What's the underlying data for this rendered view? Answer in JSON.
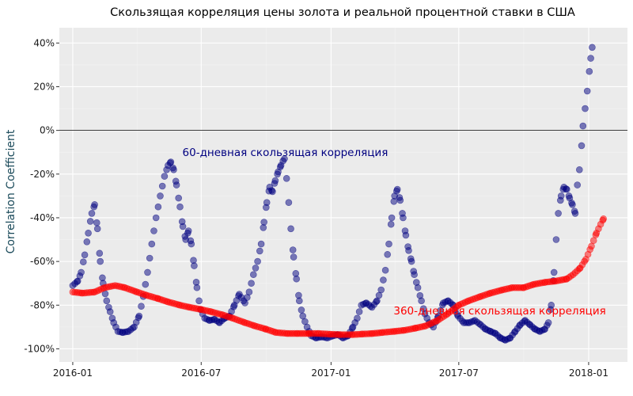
{
  "colors": {
    "panel": "#ebebeb",
    "grid_major": "#ffffff",
    "grid_minor": "#f4f4f4",
    "series_60": "#000080",
    "series_360": "#ff0000",
    "zero_line": "#000000",
    "ylabel": "#1a4a5a"
  },
  "chart_data": {
    "type": "scatter",
    "title": "Скользящая корреляция цены золота и реальной процентной ставки в США",
    "xlabel": "",
    "ylabel": "Correlation Coefficient",
    "xlim": [
      "2015-12-13",
      "2018-02-25"
    ],
    "ylim": [
      -106,
      47
    ],
    "x_ticks": [
      {
        "date": "2016-01-01",
        "label": "2016-01"
      },
      {
        "date": "2016-07-01",
        "label": "2016-07"
      },
      {
        "date": "2017-01-01",
        "label": "2017-01"
      },
      {
        "date": "2017-07-01",
        "label": "2017-07"
      },
      {
        "date": "2018-01-01",
        "label": "2018-01"
      }
    ],
    "y_ticks": [
      {
        "value": 40,
        "label": "40%"
      },
      {
        "value": 20,
        "label": "20%"
      },
      {
        "value": 0,
        "label": "0%"
      },
      {
        "value": -20,
        "label": "-20%"
      },
      {
        "value": -40,
        "label": "-40%"
      },
      {
        "value": -60,
        "label": "-60%"
      },
      {
        "value": -80,
        "label": "-80%"
      },
      {
        "value": -100,
        "label": "-100%"
      }
    ],
    "hline": 0,
    "grid": true,
    "legend": "none",
    "series": [
      {
        "name": "60-дневная скользящая корреляция",
        "color": "#000080",
        "points": [
          [
            "2016-01-01",
            -71
          ],
          [
            "2016-01-08",
            -69
          ],
          [
            "2016-01-13",
            -65
          ],
          [
            "2016-01-18",
            -57
          ],
          [
            "2016-01-23",
            -47
          ],
          [
            "2016-01-28",
            -38
          ],
          [
            "2016-02-01",
            -34
          ],
          [
            "2016-02-05",
            -45
          ],
          [
            "2016-02-09",
            -60
          ],
          [
            "2016-02-13",
            -70
          ],
          [
            "2016-02-18",
            -78
          ],
          [
            "2016-02-23",
            -83
          ],
          [
            "2016-02-28",
            -88
          ],
          [
            "2016-03-05",
            -92
          ],
          [
            "2016-03-12",
            -92.5
          ],
          [
            "2016-03-20",
            -92
          ],
          [
            "2016-03-28",
            -90
          ],
          [
            "2016-04-04",
            -85
          ],
          [
            "2016-04-10",
            -76
          ],
          [
            "2016-04-16",
            -65
          ],
          [
            "2016-04-22",
            -52
          ],
          [
            "2016-04-28",
            -40
          ],
          [
            "2016-05-04",
            -30
          ],
          [
            "2016-05-10",
            -21
          ],
          [
            "2016-05-15",
            -16
          ],
          [
            "2016-05-19",
            -14.5
          ],
          [
            "2016-05-23",
            -18
          ],
          [
            "2016-05-27",
            -25
          ],
          [
            "2016-06-01",
            -35
          ],
          [
            "2016-06-05",
            -44
          ],
          [
            "2016-06-09",
            -50
          ],
          [
            "2016-06-13",
            -46
          ],
          [
            "2016-06-17",
            -52
          ],
          [
            "2016-06-21",
            -62
          ],
          [
            "2016-06-25",
            -72
          ],
          [
            "2016-06-30",
            -82
          ],
          [
            "2016-07-06",
            -86
          ],
          [
            "2016-07-13",
            -87
          ],
          [
            "2016-07-20",
            -86.5
          ],
          [
            "2016-07-27",
            -88
          ],
          [
            "2016-08-03",
            -86
          ],
          [
            "2016-08-10",
            -85
          ],
          [
            "2016-08-17",
            -80
          ],
          [
            "2016-08-24",
            -75
          ],
          [
            "2016-09-01",
            -79
          ],
          [
            "2016-09-07",
            -74
          ],
          [
            "2016-09-13",
            -66
          ],
          [
            "2016-09-19",
            -60
          ],
          [
            "2016-09-24",
            -52
          ],
          [
            "2016-09-28",
            -42
          ],
          [
            "2016-10-02",
            -33
          ],
          [
            "2016-10-06",
            -26
          ],
          [
            "2016-10-10",
            -28
          ],
          [
            "2016-10-14",
            -23
          ],
          [
            "2016-10-18",
            -19
          ],
          [
            "2016-10-22",
            -16
          ],
          [
            "2016-10-25",
            -14
          ],
          [
            "2016-10-27",
            -13
          ],
          [
            "2016-10-30",
            -22
          ],
          [
            "2016-11-02",
            -33
          ],
          [
            "2016-11-05",
            -45
          ],
          [
            "2016-11-09",
            -58
          ],
          [
            "2016-11-13",
            -68
          ],
          [
            "2016-11-17",
            -78
          ],
          [
            "2016-11-22",
            -85
          ],
          [
            "2016-11-28",
            -90
          ],
          [
            "2016-12-04",
            -94
          ],
          [
            "2016-12-11",
            -95
          ],
          [
            "2016-12-19",
            -94.5
          ],
          [
            "2016-12-27",
            -95
          ],
          [
            "2017-01-04",
            -94
          ],
          [
            "2017-01-11",
            -93.5
          ],
          [
            "2017-01-18",
            -95
          ],
          [
            "2017-01-25",
            -94
          ],
          [
            "2017-02-01",
            -90
          ],
          [
            "2017-02-07",
            -86
          ],
          [
            "2017-02-13",
            -80
          ],
          [
            "2017-02-20",
            -79
          ],
          [
            "2017-02-28",
            -81
          ],
          [
            "2017-03-07",
            -78
          ],
          [
            "2017-03-13",
            -73
          ],
          [
            "2017-03-19",
            -64
          ],
          [
            "2017-03-24",
            -52
          ],
          [
            "2017-03-28",
            -40
          ],
          [
            "2017-04-01",
            -30
          ],
          [
            "2017-04-05",
            -27
          ],
          [
            "2017-04-09",
            -32
          ],
          [
            "2017-04-13",
            -40
          ],
          [
            "2017-04-17",
            -48
          ],
          [
            "2017-04-21",
            -55
          ],
          [
            "2017-04-25",
            -60
          ],
          [
            "2017-04-29",
            -66
          ],
          [
            "2017-05-04",
            -72
          ],
          [
            "2017-05-09",
            -78
          ],
          [
            "2017-05-14",
            -84
          ],
          [
            "2017-05-20",
            -88
          ],
          [
            "2017-05-26",
            -90
          ],
          [
            "2017-06-02",
            -85
          ],
          [
            "2017-06-09",
            -79
          ],
          [
            "2017-06-16",
            -78
          ],
          [
            "2017-06-23",
            -80
          ],
          [
            "2017-06-30",
            -85
          ],
          [
            "2017-07-08",
            -88
          ],
          [
            "2017-07-16",
            -88
          ],
          [
            "2017-07-24",
            -87
          ],
          [
            "2017-08-01",
            -89
          ],
          [
            "2017-08-08",
            -91
          ],
          [
            "2017-08-15",
            -92
          ],
          [
            "2017-08-22",
            -93
          ],
          [
            "2017-08-29",
            -95
          ],
          [
            "2017-09-05",
            -96
          ],
          [
            "2017-09-12",
            -95
          ],
          [
            "2017-09-19",
            -92
          ],
          [
            "2017-09-26",
            -89
          ],
          [
            "2017-10-03",
            -87
          ],
          [
            "2017-10-10",
            -89
          ],
          [
            "2017-10-17",
            -91
          ],
          [
            "2017-10-24",
            -92
          ],
          [
            "2017-10-31",
            -91
          ],
          [
            "2017-11-05",
            -88
          ],
          [
            "2017-11-09",
            -80
          ],
          [
            "2017-11-13",
            -65
          ],
          [
            "2017-11-16",
            -50
          ],
          [
            "2017-11-19",
            -38
          ],
          [
            "2017-11-23",
            -30
          ],
          [
            "2017-11-27",
            -26
          ],
          [
            "2017-12-01",
            -27
          ],
          [
            "2017-12-05",
            -31
          ],
          [
            "2017-12-09",
            -34
          ],
          [
            "2017-12-13",
            -38
          ],
          [
            "2017-12-16",
            -25
          ],
          [
            "2017-12-19",
            -18
          ],
          [
            "2017-12-22",
            -7
          ],
          [
            "2017-12-24",
            2
          ],
          [
            "2017-12-27",
            10
          ],
          [
            "2017-12-30",
            18
          ],
          [
            "2018-01-02",
            27
          ],
          [
            "2018-01-04",
            33
          ],
          [
            "2018-01-06",
            38
          ]
        ]
      },
      {
        "name": "360-дневная скользящая корреляция",
        "color": "#ff0000",
        "points": [
          [
            "2016-01-01",
            -74
          ],
          [
            "2016-01-15",
            -74.5
          ],
          [
            "2016-02-01",
            -74
          ],
          [
            "2016-02-15",
            -72
          ],
          [
            "2016-03-01",
            -71
          ],
          [
            "2016-03-15",
            -72
          ],
          [
            "2016-04-01",
            -74
          ],
          [
            "2016-04-15",
            -75.5
          ],
          [
            "2016-05-01",
            -77
          ],
          [
            "2016-05-15",
            -78.5
          ],
          [
            "2016-06-01",
            -80
          ],
          [
            "2016-06-15",
            -81
          ],
          [
            "2016-07-01",
            -82
          ],
          [
            "2016-07-15",
            -83
          ],
          [
            "2016-08-01",
            -84.5
          ],
          [
            "2016-08-15",
            -86
          ],
          [
            "2016-09-01",
            -88
          ],
          [
            "2016-09-15",
            -89.5
          ],
          [
            "2016-10-01",
            -91
          ],
          [
            "2016-10-15",
            -92.5
          ],
          [
            "2016-11-01",
            -93
          ],
          [
            "2016-11-15",
            -93
          ],
          [
            "2016-12-01",
            -93
          ],
          [
            "2016-12-15",
            -93
          ],
          [
            "2017-01-01",
            -93.3
          ],
          [
            "2017-01-15",
            -93.5
          ],
          [
            "2017-02-01",
            -93.5
          ],
          [
            "2017-02-15",
            -93.2
          ],
          [
            "2017-03-01",
            -93
          ],
          [
            "2017-03-15",
            -92.5
          ],
          [
            "2017-04-01",
            -92
          ],
          [
            "2017-04-15",
            -91.5
          ],
          [
            "2017-05-01",
            -90.5
          ],
          [
            "2017-05-15",
            -89.5
          ],
          [
            "2017-06-01",
            -87
          ],
          [
            "2017-06-15",
            -84
          ],
          [
            "2017-07-01",
            -80
          ],
          [
            "2017-07-15",
            -78
          ],
          [
            "2017-08-01",
            -76
          ],
          [
            "2017-08-15",
            -74.5
          ],
          [
            "2017-09-01",
            -73
          ],
          [
            "2017-09-15",
            -72
          ],
          [
            "2017-10-01",
            -72
          ],
          [
            "2017-10-15",
            -70.5
          ],
          [
            "2017-11-01",
            -69.5
          ],
          [
            "2017-11-15",
            -69
          ],
          [
            "2017-12-01",
            -68
          ],
          [
            "2017-12-10",
            -66
          ],
          [
            "2017-12-20",
            -63
          ],
          [
            "2017-12-28",
            -59
          ],
          [
            "2018-01-05",
            -53
          ],
          [
            "2018-01-12",
            -47
          ],
          [
            "2018-01-18",
            -43
          ],
          [
            "2018-01-22",
            -40.5
          ]
        ]
      }
    ],
    "annotations": [
      {
        "text": "60-дневная скользящая корреляция",
        "date": "2016-10-28",
        "value": -10,
        "color": "#000080"
      },
      {
        "text": "360-дневная скользящая корреляция",
        "date": "2017-08-28",
        "value": -82.5,
        "color": "#ff0000"
      }
    ]
  }
}
